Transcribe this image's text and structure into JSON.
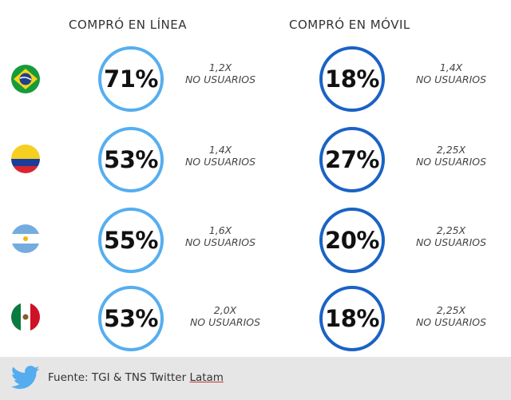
{
  "headers": {
    "online": "COMPRÓ EN LÍNEA",
    "mobile": "COMPRÓ EN MÓVIL"
  },
  "colors": {
    "online_ring": "#55aef0",
    "mobile_ring": "#1a62c6",
    "footer_bg": "#e6e6e6",
    "twitter_blue": "#55acee"
  },
  "rows": [
    {
      "flag_icon": "brazil-flag-icon",
      "online": {
        "value": "71%",
        "ratio": "1,2X",
        "label": "NO USUARIOS"
      },
      "mobile": {
        "value": "18%",
        "ratio": "1,4X",
        "label": "NO USUARIOS"
      }
    },
    {
      "flag_icon": "colombia-flag-icon",
      "online": {
        "value": "53%",
        "ratio": "1,4X",
        "label": "NO USUARIOS"
      },
      "mobile": {
        "value": "27%",
        "ratio": "2,25X",
        "label": "NO USUARIOS"
      }
    },
    {
      "flag_icon": "argentina-flag-icon",
      "online": {
        "value": "55%",
        "ratio": "1,6X",
        "label": "NO USUARIOS"
      },
      "mobile": {
        "value": "20%",
        "ratio": "2,25X",
        "label": "NO USUARIOS"
      }
    },
    {
      "flag_icon": "mexico-flag-icon",
      "online": {
        "value": "53%",
        "ratio": "2,0X",
        "label": "NO USUARIOS"
      },
      "mobile": {
        "value": "18%",
        "ratio": "2,25X",
        "label": "NO USUARIOS"
      }
    }
  ],
  "footer": {
    "source_prefix": "Fuente: TGI & TNS Twitter ",
    "source_underlined": "Latam",
    "icon": "twitter-bird-icon"
  },
  "chart_data": {
    "type": "table",
    "columns": [
      "COMPRÓ EN LÍNEA",
      "COMPRÓ EN MÓVIL"
    ],
    "rows": [
      {
        "online_pct": 71,
        "online_ratio": "1,2X NO USUARIOS",
        "mobile_pct": 18,
        "mobile_ratio": "1,4X NO USUARIOS"
      },
      {
        "online_pct": 53,
        "online_ratio": "1,4X NO USUARIOS",
        "mobile_pct": 27,
        "mobile_ratio": "2,25X NO USUARIOS"
      },
      {
        "online_pct": 55,
        "online_ratio": "1,6X NO USUARIOS",
        "mobile_pct": 20,
        "mobile_ratio": "2,25X NO USUARIOS"
      },
      {
        "online_pct": 53,
        "online_ratio": "2,0X NO USUARIOS",
        "mobile_pct": 18,
        "mobile_ratio": "2,25X NO USUARIOS"
      }
    ]
  }
}
